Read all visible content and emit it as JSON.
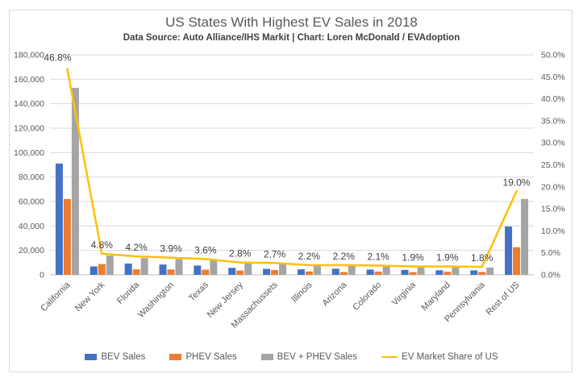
{
  "chart_data": {
    "type": "bar",
    "title": "US States With Highest EV Sales in 2018",
    "subtitle": "Data Source: Auto Alliance/IHS Markit | Chart: Loren McDonald / EVAdoption",
    "categories": [
      "California",
      "New York",
      "Florida",
      "Washington",
      "Texas",
      "New Jersey",
      "Massachussets",
      "Illinois",
      "Arizona",
      "Colorado",
      "Virginia",
      "Maryland",
      "Pennsylvania",
      "Rest of US"
    ],
    "series": [
      {
        "name": "BEV Sales",
        "render": "bar",
        "axis": "left",
        "color": "#4472C4",
        "values": [
          91000,
          6900,
          9200,
          8400,
          7600,
          5700,
          4900,
          4500,
          5000,
          4300,
          4000,
          3700,
          3600,
          39500
        ]
      },
      {
        "name": "PHEV Sales",
        "render": "bar",
        "axis": "left",
        "color": "#ED7D31",
        "values": [
          62000,
          8800,
          4500,
          4400,
          4200,
          3500,
          3900,
          2700,
          2200,
          2600,
          2200,
          2500,
          2300,
          22600
        ]
      },
      {
        "name": "BEV + PHEV Sales",
        "render": "bar",
        "axis": "left",
        "color": "#A5A5A5",
        "values": [
          153000,
          15700,
          13700,
          12800,
          11800,
          9200,
          8800,
          7200,
          7200,
          6900,
          6200,
          6200,
          5900,
          62100
        ]
      },
      {
        "name": "EV Market Share of US",
        "render": "line",
        "axis": "right",
        "color": "#FFC000",
        "values": [
          46.8,
          4.8,
          4.2,
          3.9,
          3.6,
          2.8,
          2.7,
          2.2,
          2.2,
          2.1,
          1.9,
          1.9,
          1.8,
          19.0
        ],
        "point_labels": [
          "46.8%",
          "4.8%",
          "4.2%",
          "3.9%",
          "3.6%",
          "2.8%",
          "2.7%",
          "2.2%",
          "2.2%",
          "2.1%",
          "1.9%",
          "1.9%",
          "1.8%",
          "19.0%"
        ]
      }
    ],
    "left_axis": {
      "min": 0,
      "max": 180000,
      "step": 20000,
      "tick_labels": [
        "0",
        "20,000",
        "40,000",
        "60,000",
        "80,000",
        "100,000",
        "120,000",
        "140,000",
        "160,000",
        "180,000"
      ]
    },
    "right_axis": {
      "min": 0,
      "max": 50,
      "step": 5,
      "tick_labels": [
        "0.0%",
        "5.0%",
        "10.0%",
        "15.0%",
        "20.0%",
        "25.0%",
        "30.0%",
        "35.0%",
        "40.0%",
        "45.0%",
        "50.0%"
      ]
    },
    "grid": true,
    "legend_position": "bottom",
    "colors": {
      "background": "#FFFFFF",
      "border": "#D9D9D9",
      "grid": "#D9D9D9",
      "axis_line": "#BFBFBF",
      "tick_text": "#595959",
      "category_text": "#595959",
      "data_label_text": "#404040",
      "title_text": "#595959"
    }
  }
}
